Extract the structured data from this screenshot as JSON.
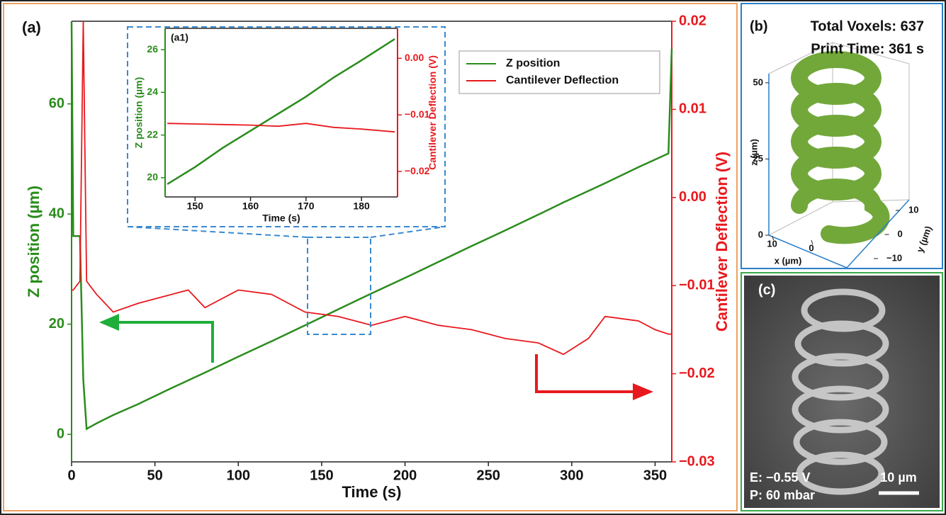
{
  "chart_data": [
    {
      "type": "line",
      "panel_label": "(a)",
      "x_label": "Time (s)",
      "y_label": "Z position (µm)",
      "y2_label": "Cantilever Deflection (V)",
      "x": [
        0,
        1,
        5,
        7,
        9,
        15,
        25,
        40,
        60,
        70,
        80,
        100,
        120,
        140,
        160,
        180,
        200,
        220,
        240,
        260,
        280,
        295,
        310,
        320,
        340,
        350,
        358,
        360
      ],
      "series": [
        {
          "name": "Z position",
          "color": "#2a8c1c",
          "values": [
            75,
            36,
            36,
            10,
            1,
            2,
            3.5,
            5.5,
            8.4,
            9.8,
            11.2,
            14.1,
            16.9,
            19.8,
            22.7,
            25.6,
            28.4,
            31.3,
            34.2,
            37.0,
            39.9,
            42.1,
            44.2,
            45.6,
            48.5,
            49.9,
            51,
            70
          ]
        },
        {
          "name": "Cantilever Deflection",
          "color": "#e8191e",
          "axis": "y2",
          "values": [
            -0.0105,
            -0.0105,
            -0.0095,
            0.02,
            -0.0095,
            -0.011,
            -0.013,
            -0.012,
            -0.011,
            -0.0105,
            -0.0125,
            -0.0105,
            -0.011,
            -0.013,
            -0.0135,
            -0.0145,
            -0.0135,
            -0.0145,
            -0.015,
            -0.016,
            -0.0165,
            -0.0178,
            -0.016,
            -0.0135,
            -0.014,
            -0.015,
            -0.0155,
            -0.0155
          ]
        }
      ],
      "xlim": [
        0,
        360
      ],
      "xticks": [
        0,
        50,
        100,
        150,
        200,
        250,
        300,
        350
      ],
      "ylim": [
        -5,
        75
      ],
      "yticks": [
        0,
        20,
        40,
        60
      ],
      "y2lim": [
        -0.03,
        0.02
      ],
      "y2ticks": [
        {
          "value": -0.03,
          "label": "−0.03"
        },
        {
          "value": -0.02,
          "label": "−0.02"
        },
        {
          "value": -0.01,
          "label": "−0.01"
        },
        {
          "value": 0,
          "label": "0.00"
        },
        0.01,
        0.02
      ],
      "legend": "upper right"
    },
    {
      "type": "line",
      "panel_label": "(a1)",
      "x_label": "Time (s)",
      "y_label": "Z position (µm)",
      "y2_label": "Cantilever Deflection (V)",
      "x": [
        145,
        150,
        155,
        160,
        165,
        170,
        175,
        180,
        186
      ],
      "series": [
        {
          "name": "Z position",
          "color": "#2a8c1c",
          "values": [
            19.7,
            20.5,
            21.4,
            22.2,
            23.0,
            23.8,
            24.7,
            25.5,
            26.5
          ]
        },
        {
          "name": "Cantilever Deflection",
          "color": "#e8191e",
          "axis": "y2",
          "values": [
            -0.0115,
            -0.0116,
            -0.0117,
            -0.0118,
            -0.012,
            -0.0115,
            -0.0122,
            -0.0125,
            -0.013
          ]
        }
      ],
      "xlim": [
        144.6,
        186.5
      ],
      "xticks": [
        150,
        160,
        170,
        180
      ],
      "ylim": [
        19.1,
        27
      ],
      "yticks": [
        20,
        22,
        24,
        26
      ],
      "y2lim": [
        -0.0245,
        0.0053
      ],
      "y2ticks": [
        {
          "value": -0.02,
          "label": "−0.02"
        },
        {
          "value": -0.01,
          "label": "−0.01"
        },
        {
          "value": 0,
          "label": "0.00"
        }
      ]
    },
    {
      "type": "helix3d",
      "panel_label": "(b)",
      "annotations": [
        "Total Voxels: 637",
        "Print Time: 361 s"
      ],
      "x_label": "x (µm)",
      "y_label": "y (µm)",
      "z_label": "z (µm)",
      "color": "#72a83a",
      "xlim": [
        -15,
        15
      ],
      "xticks": [
        10,
        0
      ],
      "ylim": [
        -15,
        15
      ],
      "yticks": [
        10,
        0,
        {
          "value": -10,
          "label": "−10"
        }
      ],
      "zlim": [
        0,
        53
      ],
      "zticks": [
        0,
        25,
        50
      ]
    }
  ],
  "sem_image": {
    "panel_label": "(c)",
    "annotations": [
      "E: −0.55 V",
      "P: 60 mbar"
    ],
    "scale_bar": "10 µm"
  }
}
